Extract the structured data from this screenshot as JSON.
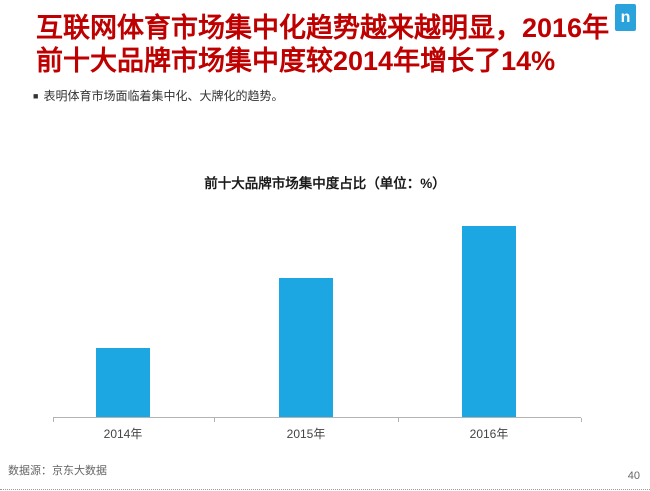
{
  "page": {
    "title_line1": "互联网体育市场集中化趋势越来越明显，2016年",
    "title_line2": "前十大品牌市场集中度较2014年增长了14%",
    "title_color": "#BE0000",
    "bullet_marker": "■",
    "bullet_text": "表明体育市场面临着集中化、大牌化的趋势。",
    "logo_letter": "n",
    "logo_color": "#2AA2DB",
    "footer_source": "数据源：京东大数据",
    "page_number": "40"
  },
  "chart_data": {
    "type": "bar",
    "title": "前十大品牌市场集中度占比（单位：%）",
    "categories": [
      "2014年",
      "2015年",
      "2016年"
    ],
    "values": [
      8,
      16,
      22
    ],
    "unit": "%",
    "xlabel": "",
    "ylabel": "",
    "ylim": [
      0,
      24
    ],
    "gridlines": false,
    "legend": "none",
    "data_labels": false,
    "bar_color": "#1CA7E2",
    "axis_color": "#B3B3B3"
  }
}
